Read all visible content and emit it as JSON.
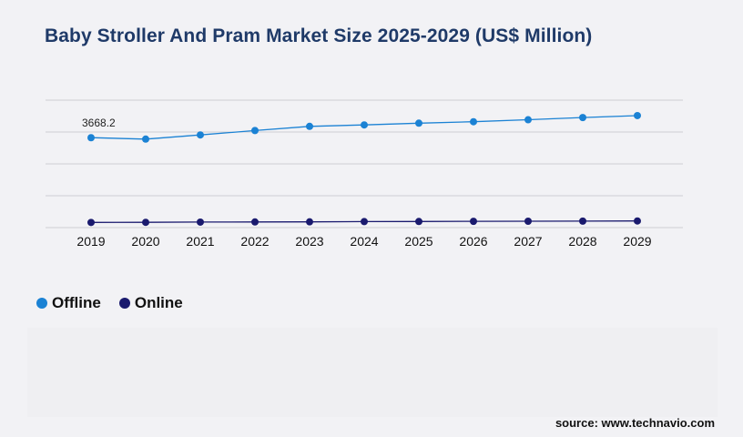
{
  "page": {
    "title": "Baby Stroller And Pram Market Size 2025-2029 (US$ Million)",
    "source": "source: www.technavio.com"
  },
  "legend": [
    {
      "label": "Offline",
      "color": "#1b82d4"
    },
    {
      "label": "Online",
      "color": "#1a1a6e"
    }
  ],
  "chart_data": {
    "type": "line",
    "title": "Baby Stroller And Pram Market Size 2025-2029 (US$ Million)",
    "xlabel": "",
    "ylabel": "",
    "categories": [
      "2019",
      "2020",
      "2021",
      "2022",
      "2023",
      "2024",
      "2025",
      "2026",
      "2027",
      "2028",
      "2029"
    ],
    "ylim": [
      0,
      5200
    ],
    "grid": true,
    "legend_position": "bottom-left",
    "series": [
      {
        "name": "Offline",
        "color": "#1b82d4",
        "values": [
          3668.2,
          3610,
          3780,
          3960,
          4130,
          4190,
          4260,
          4320,
          4400,
          4490,
          4570
        ]
      },
      {
        "name": "Online",
        "color": "#1a1a6e",
        "values": [
          210,
          215,
          225,
          230,
          235,
          245,
          250,
          255,
          260,
          265,
          270
        ]
      }
    ],
    "data_labels": [
      {
        "series": "Offline",
        "index": 0,
        "text": "3668.2"
      }
    ]
  }
}
